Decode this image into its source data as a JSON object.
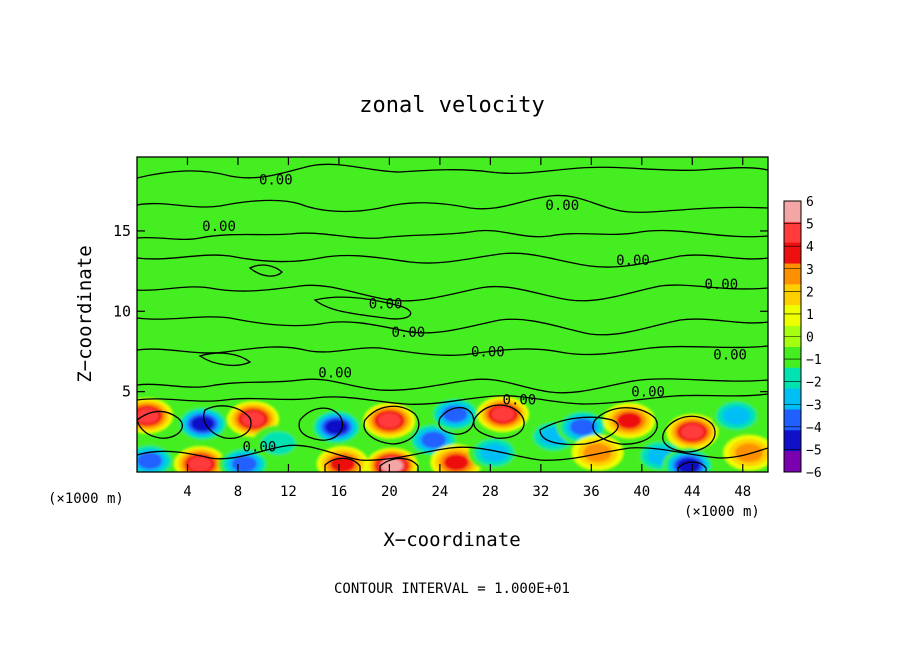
{
  "chart_data": {
    "type": "heatmap",
    "title": "zonal velocity",
    "xlabel": "X−coordinate",
    "ylabel": "Z−coordinate",
    "x_unit_left": "(×1000 m)",
    "x_unit_right": "(×1000 m)",
    "footer": "CONTOUR INTERVAL = 1.000E+01",
    "xlim": [
      0,
      50
    ],
    "ylim": [
      0,
      19.6
    ],
    "x_ticks": [
      "4",
      "8",
      "12",
      "16",
      "20",
      "24",
      "28",
      "32",
      "36",
      "40",
      "44",
      "48"
    ],
    "x_tick_values": [
      4,
      8,
      12,
      16,
      20,
      24,
      28,
      32,
      36,
      40,
      44,
      48
    ],
    "y_ticks": [
      "5",
      "10",
      "15"
    ],
    "y_tick_values": [
      5,
      10,
      15
    ],
    "colorbar": {
      "labels": [
        "6",
        "5",
        "4",
        "3",
        "2",
        "1",
        "0",
        "−1",
        "−2",
        "−3",
        "−4",
        "−5",
        "−6"
      ],
      "values": [
        6,
        5,
        4,
        3,
        2,
        1,
        0,
        -1,
        -2,
        -3,
        -4,
        -5,
        -6
      ],
      "colors": [
        "#f4a6a6",
        "#ff3b3b",
        "#ee1010",
        "#ff9000",
        "#ffd000",
        "#eeff00",
        "#a6ff10",
        "#44ee20",
        "#00e2b0",
        "#00bff5",
        "#2060ff",
        "#1010c8",
        "#7a00b0"
      ]
    },
    "contour_labels": [
      {
        "text": "0.00",
        "x": 11.0,
        "y": 18.2
      },
      {
        "text": "0.00",
        "x": 6.5,
        "y": 15.3
      },
      {
        "text": "0.00",
        "x": 33.7,
        "y": 16.6
      },
      {
        "text": "0.00",
        "x": 39.3,
        "y": 13.2
      },
      {
        "text": "0.00",
        "x": 46.3,
        "y": 11.7
      },
      {
        "text": "0.00",
        "x": 19.7,
        "y": 10.5
      },
      {
        "text": "0.00",
        "x": 21.5,
        "y": 8.7
      },
      {
        "text": "0.00",
        "x": 27.8,
        "y": 7.5
      },
      {
        "text": "0.00",
        "x": 47.0,
        "y": 7.3
      },
      {
        "text": "0.00",
        "x": 15.7,
        "y": 6.2
      },
      {
        "text": "0.00",
        "x": 30.3,
        "y": 4.5
      },
      {
        "text": "0.00",
        "x": 40.5,
        "y": 5.0
      },
      {
        "text": "0.00",
        "x": 9.7,
        "y": 1.6
      }
    ],
    "velocity_anomalies": [
      {
        "x": 0.8,
        "z": 3.5,
        "value": 5
      },
      {
        "x": 5.2,
        "z": 3.0,
        "value": -5
      },
      {
        "x": 9.2,
        "z": 3.3,
        "value": 5
      },
      {
        "x": 1.0,
        "z": 0.7,
        "value": -4
      },
      {
        "x": 5.0,
        "z": 0.5,
        "value": 5
      },
      {
        "x": 8.5,
        "z": 0.5,
        "value": -4
      },
      {
        "x": 11.2,
        "z": 1.8,
        "value": -2
      },
      {
        "x": 15.8,
        "z": 2.8,
        "value": -5
      },
      {
        "x": 16.3,
        "z": 0.5,
        "value": 4
      },
      {
        "x": 20.0,
        "z": 3.2,
        "value": 5
      },
      {
        "x": 20.2,
        "z": 0.4,
        "value": 6
      },
      {
        "x": 23.5,
        "z": 2.0,
        "value": -4
      },
      {
        "x": 25.2,
        "z": 3.6,
        "value": -4
      },
      {
        "x": 25.3,
        "z": 0.6,
        "value": 4
      },
      {
        "x": 28.3,
        "z": 1.2,
        "value": -3
      },
      {
        "x": 29.0,
        "z": 3.6,
        "value": 5
      },
      {
        "x": 33.0,
        "z": 2.2,
        "value": -3
      },
      {
        "x": 35.3,
        "z": 2.8,
        "value": -4
      },
      {
        "x": 36.5,
        "z": 1.2,
        "value": 3
      },
      {
        "x": 39.0,
        "z": 3.2,
        "value": 4
      },
      {
        "x": 41.5,
        "z": 1.0,
        "value": -3
      },
      {
        "x": 44.0,
        "z": 2.5,
        "value": 5
      },
      {
        "x": 43.7,
        "z": 0.4,
        "value": -5
      },
      {
        "x": 47.5,
        "z": 3.5,
        "value": -3
      },
      {
        "x": 48.5,
        "z": 1.2,
        "value": 3
      }
    ]
  }
}
